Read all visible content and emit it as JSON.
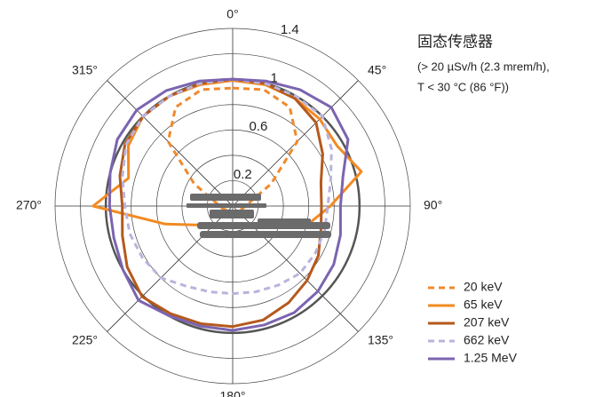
{
  "chart_data": {
    "type": "polar",
    "title": "固态传感器",
    "subtitle": [
      "(> 20 µSv/h (2.3 mrem/h),",
      "T < 30 °C (86 °F))"
    ],
    "theta": [
      0,
      15,
      30,
      45,
      60,
      75,
      90,
      105,
      120,
      135,
      150,
      165,
      180,
      195,
      210,
      225,
      240,
      255,
      270,
      285,
      300,
      315,
      330,
      345
    ],
    "thetaticks": [
      {
        "value": 0,
        "label": "0°"
      },
      {
        "value": 45,
        "label": "45°"
      },
      {
        "value": 90,
        "label": "90°"
      },
      {
        "value": 135,
        "label": "135°"
      },
      {
        "value": 180,
        "label": "180°"
      },
      {
        "value": 225,
        "label": "225°"
      },
      {
        "value": 270,
        "label": "270°"
      },
      {
        "value": 315,
        "label": "315°"
      }
    ],
    "rlim": [
      0,
      1.4
    ],
    "rticks": [
      0.2,
      0.6,
      1.0,
      1.4
    ],
    "rminor_ticks": [
      0.4,
      0.8,
      1.2
    ],
    "reference_circle": 1.0,
    "series": [
      {
        "name": "20 keV",
        "color": "#f0892c",
        "dash": true,
        "values": [
          0.93,
          0.95,
          0.9,
          0.72,
          0.35,
          0.15,
          0.1,
          0.08,
          0.06,
          0.05,
          0.05,
          0.05,
          0.05,
          0.05,
          0.05,
          0.05,
          0.06,
          0.08,
          0.1,
          0.15,
          0.35,
          0.72,
          0.9,
          0.95
        ]
      },
      {
        "name": "65 keV",
        "color": "#f28a22",
        "dash": false,
        "values": [
          0.99,
          0.99,
          0.98,
          0.97,
          0.95,
          1.05,
          0.77,
          0.6,
          0.3,
          0.2,
          0.17,
          0.15,
          0.15,
          0.15,
          0.17,
          0.2,
          0.3,
          0.55,
          1.1,
          0.85,
          0.95,
          1.0,
          1.0,
          0.99
        ]
      },
      {
        "name": "207 keV",
        "color": "#b5591c",
        "dash": false,
        "values": [
          1.0,
          1.0,
          0.98,
          0.93,
          0.82,
          0.72,
          0.7,
          0.72,
          0.78,
          0.83,
          0.88,
          0.93,
          0.95,
          0.96,
          0.98,
          1.01,
          0.96,
          0.9,
          0.87,
          0.92,
          0.98,
          1.0,
          1.0,
          1.0
        ]
      },
      {
        "name": "662 keV",
        "color": "#bab3dc",
        "dash": true,
        "values": [
          1.0,
          1.0,
          1.0,
          1.0,
          0.9,
          0.8,
          0.75,
          0.75,
          0.75,
          0.75,
          0.72,
          0.7,
          0.69,
          0.7,
          0.73,
          0.8,
          0.82,
          0.84,
          0.85,
          0.9,
          0.97,
          1.0,
          1.0,
          1.0
        ]
      },
      {
        "name": "1.25 MeV",
        "color": "#7b64b0",
        "dash": false,
        "values": [
          1.0,
          1.02,
          1.06,
          1.1,
          1.05,
          0.9,
          0.85,
          0.88,
          0.92,
          0.95,
          0.97,
          0.97,
          0.98,
          0.98,
          1.0,
          1.05,
          1.0,
          0.97,
          0.97,
          1.0,
          1.05,
          1.07,
          1.05,
          1.02
        ]
      }
    ]
  }
}
